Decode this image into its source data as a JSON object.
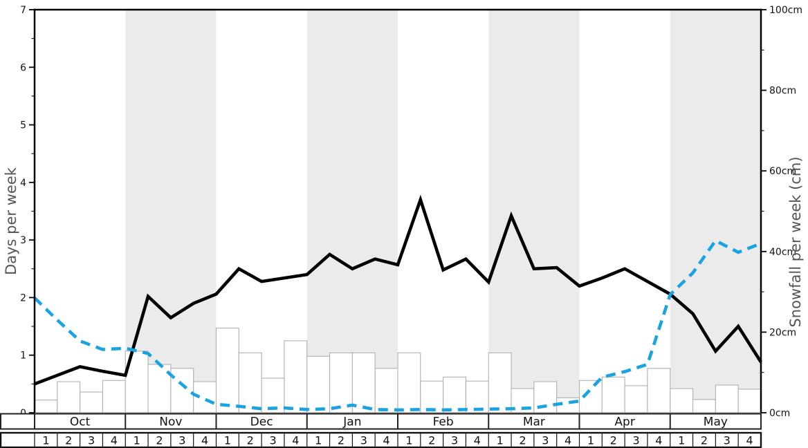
{
  "chart_data": {
    "type": "combo",
    "title": "",
    "months": [
      "Oct",
      "Nov",
      "Dec",
      "Jan",
      "Feb",
      "Mar",
      "Apr",
      "May"
    ],
    "weeks_per_month": 4,
    "week_labels": [
      "1",
      "2",
      "3",
      "4"
    ],
    "ylabel_left": "Days per week",
    "ylabel_right": "Snowfall per week (cm)",
    "ylim_left": [
      0,
      7
    ],
    "ylim_right": [
      0,
      100
    ],
    "yticks_left": [
      0,
      1,
      2,
      3,
      4,
      5,
      6,
      7
    ],
    "yticks_right": [
      0,
      20,
      40,
      60,
      80,
      100
    ],
    "yticks_right_labels": [
      "0cm",
      "20cm",
      "40cm",
      "60cm",
      "80cm",
      "100cm"
    ],
    "shaded_months": [
      "Nov",
      "Jan",
      "Mar",
      "May"
    ],
    "band_color": "#ebebeb",
    "plot_bg": "#ffffff",
    "grid": false,
    "legend": "none",
    "series": [
      {
        "name": "snowy-days-per-week",
        "type": "line",
        "line_style": "solid",
        "color": "#000000",
        "axis": "left",
        "x_unit": "week-boundary",
        "values": [
          0.5,
          0.65,
          0.8,
          0.72,
          0.65,
          2.02,
          1.65,
          1.9,
          2.06,
          2.5,
          2.28,
          2.34,
          2.4,
          2.75,
          2.5,
          2.67,
          2.57,
          3.7,
          2.48,
          2.67,
          2.27,
          3.42,
          2.5,
          2.52,
          2.2,
          2.34,
          2.5,
          2.28,
          2.06,
          1.72,
          1.07,
          1.5,
          0.88
        ]
      },
      {
        "name": "snowfall-per-week-cm",
        "type": "line",
        "line_style": "dashed",
        "color": "#1aa3e3",
        "axis": "right",
        "x_unit": "week-boundary",
        "values": [
          28.5,
          23,
          17.8,
          15.7,
          16,
          14.7,
          9.4,
          4.6,
          2.1,
          1.6,
          1,
          1.2,
          0.8,
          1,
          1.9,
          0.8,
          0.7,
          0.8,
          0.7,
          0.8,
          0.9,
          1,
          1.2,
          2.1,
          2.9,
          8.8,
          10.2,
          12,
          29.3,
          34.7,
          42.7,
          39.8,
          42
        ]
      },
      {
        "name": "weekly-bars",
        "type": "bar",
        "color": "#ffffff",
        "border_color": "#b0b0b0",
        "axis": "left",
        "x_unit": "week",
        "values": [
          0.22,
          0.54,
          0.36,
          0.56,
          1.07,
          0.84,
          0.77,
          0.54,
          1.47,
          1.04,
          0.6,
          1.25,
          0.98,
          1.04,
          1.04,
          0.77,
          1.04,
          0.55,
          0.62,
          0.55,
          1.04,
          0.42,
          0.54,
          0.26,
          0.56,
          0.62,
          0.47,
          0.77,
          0.42,
          0.23,
          0.48,
          0.41
        ]
      }
    ]
  }
}
